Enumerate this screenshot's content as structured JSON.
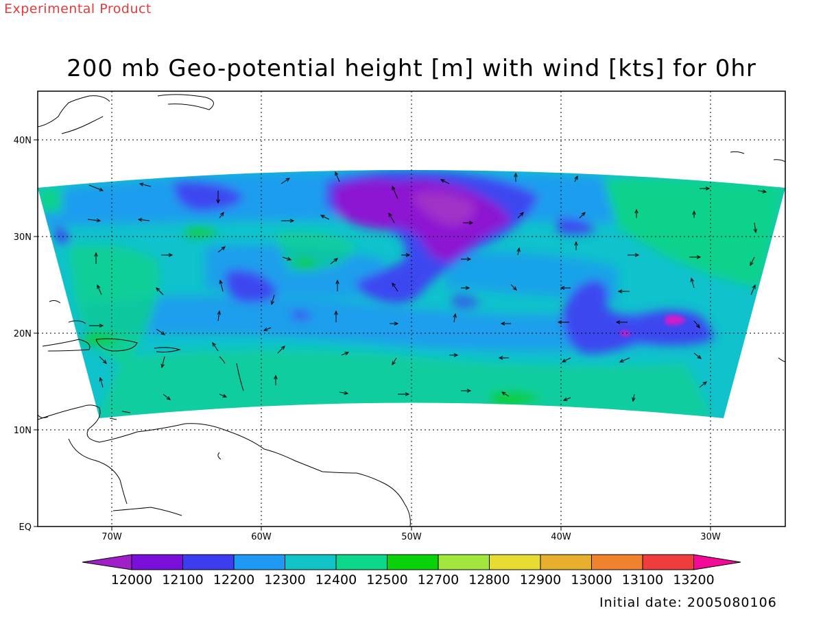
{
  "header": {
    "experimental_label": "Experimental Product"
  },
  "title": "200 mb Geo-potential height [m] with wind [kts] for 0hr",
  "footer": {
    "initial_date": "Initial date: 2005080106"
  },
  "map": {
    "region": "Tropical North Atlantic / Caribbean",
    "projection": "lat-lon",
    "lon_range": [
      -75,
      -25
    ],
    "lat_range": [
      0,
      45
    ],
    "lon_ticks": [
      {
        "value": -70,
        "label": "70W"
      },
      {
        "value": -60,
        "label": "60W"
      },
      {
        "value": -50,
        "label": "50W"
      },
      {
        "value": -40,
        "label": "40W"
      },
      {
        "value": -30,
        "label": "30W"
      }
    ],
    "lat_ticks": [
      {
        "value": 0,
        "label": "EQ"
      },
      {
        "value": 10,
        "label": "10N"
      },
      {
        "value": 20,
        "label": "20N"
      },
      {
        "value": 30,
        "label": "30N"
      },
      {
        "value": 40,
        "label": "40N"
      }
    ],
    "grid": "dotted",
    "field": "200 mb geopotential height shaded with wind vectors"
  },
  "colorbar": {
    "labels": [
      "12000",
      "12100",
      "12200",
      "12300",
      "12400",
      "12500",
      "12700",
      "12800",
      "12900",
      "13000",
      "13100",
      "13200"
    ],
    "colors": [
      "#a020c8",
      "#7a10d8",
      "#3c3cf0",
      "#1e9af5",
      "#10c4c8",
      "#0cd68a",
      "#0ad20a",
      "#a0e63c",
      "#e6dc32",
      "#e6af2d",
      "#f0822d",
      "#f03c3c",
      "#f00a96"
    ]
  },
  "colors": {
    "dark_purple": "#8c14d2",
    "purple": "#a032c8",
    "blue": "#3c46f0",
    "light_blue": "#1e96f5",
    "cyan": "#10c2cc",
    "teal_green": "#0ad28c",
    "green": "#0acd2d",
    "magenta": "#d21ec8",
    "coast": "#000000"
  }
}
